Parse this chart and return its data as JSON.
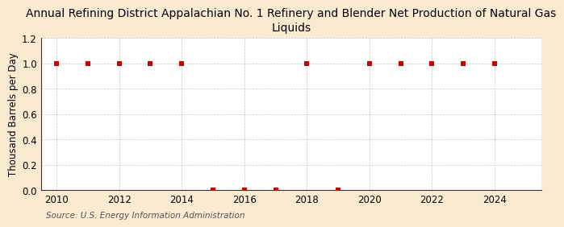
{
  "title": "Annual Refining District Appalachian No. 1 Refinery and Blender Net Production of Natural Gas\nLiquids",
  "ylabel": "Thousand Barrels per Day",
  "source": "Source: U.S. Energy Information Administration",
  "background_color": "#faebd0",
  "plot_background_color": "#ffffff",
  "years": [
    2010,
    2011,
    2012,
    2013,
    2014,
    2015,
    2016,
    2017,
    2018,
    2019,
    2020,
    2021,
    2022,
    2023,
    2024
  ],
  "values": [
    1.0,
    1.0,
    1.0,
    1.0,
    1.0,
    0.0,
    0.0,
    0.0,
    1.0,
    0.0,
    1.0,
    1.0,
    1.0,
    1.0,
    1.0
  ],
  "marker_color": "#cc0000",
  "marker_size": 4,
  "xlim": [
    2009.5,
    2025.5
  ],
  "ylim": [
    0.0,
    1.2
  ],
  "yticks": [
    0.0,
    0.2,
    0.4,
    0.6,
    0.8,
    1.0,
    1.2
  ],
  "xticks": [
    2010,
    2012,
    2014,
    2016,
    2018,
    2020,
    2022,
    2024
  ],
  "grid_color": "#aaaaaa",
  "title_fontsize": 10,
  "axis_fontsize": 8.5,
  "source_fontsize": 7.5
}
